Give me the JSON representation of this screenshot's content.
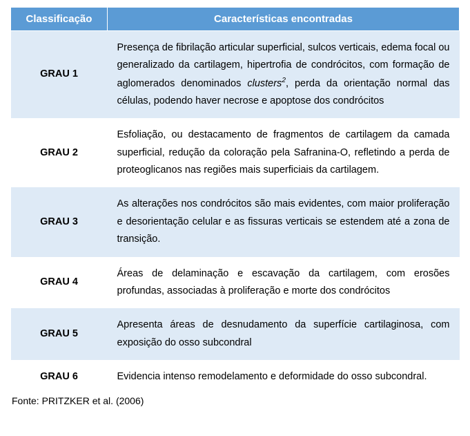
{
  "table": {
    "header_bg": "#5b9bd5",
    "shade_bg": "#deeaf6",
    "columns": [
      "Classificação",
      "Características encontradas"
    ],
    "rows": [
      {
        "label": "GRAU 1",
        "shaded": true,
        "desc_pre": "Presença de fibrilação articular superficial, sulcos verticais, edema focal ou generalizado da cartilagem, hipertrofia de condrócitos, com formação de aglomerados denominados ",
        "desc_italic": "clusters",
        "desc_sup": "2",
        "desc_post": ", perda da orientação normal das células, podendo haver necrose e apoptose dos condrócitos"
      },
      {
        "label": "GRAU 2",
        "shaded": false,
        "desc": "Esfoliação, ou destacamento de fragmentos de cartilagem da camada superficial, redução da coloração pela Safranina-O, refletindo a perda de proteoglicanos nas regiões mais superficiais da cartilagem."
      },
      {
        "label": "GRAU 3",
        "shaded": true,
        "desc": "As alterações nos condrócitos são mais evidentes, com maior proliferação e desorientação celular e as fissuras verticais se estendem até a zona de transição."
      },
      {
        "label": "GRAU 4",
        "shaded": false,
        "desc": "Áreas de delaminação e escavação da cartilagem, com erosões profundas, associadas à proliferação e morte dos condrócitos"
      },
      {
        "label": "GRAU 5",
        "shaded": true,
        "desc": "Apresenta áreas de desnudamento da superfície cartilaginosa, com exposição do osso subcondral"
      },
      {
        "label": "GRAU 6",
        "shaded": false,
        "desc": "Evidencia intenso remodelamento e deformidade do osso subcondral."
      }
    ]
  },
  "source": "Fonte: PRITZKER et al. (2006)"
}
